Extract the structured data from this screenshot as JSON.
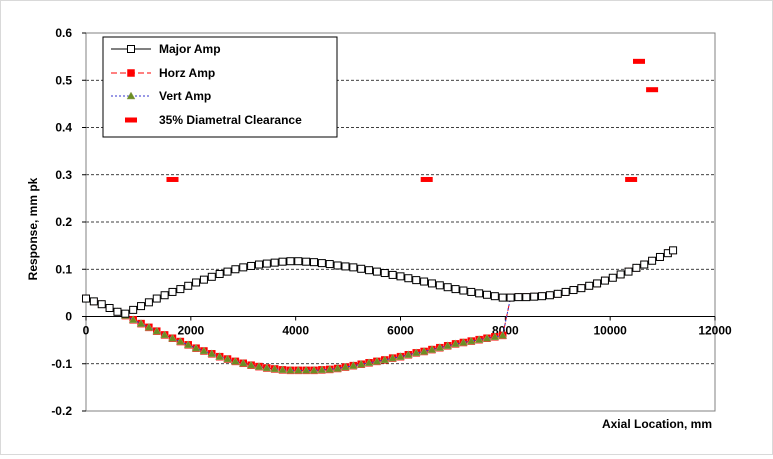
{
  "chart_data": {
    "type": "scatter",
    "title": "",
    "xlabel": "Axial Location, mm",
    "ylabel": "Response, mm pk",
    "xlim": [
      0,
      12000
    ],
    "ylim": [
      -0.2,
      0.6
    ],
    "x_ticks": [
      0,
      2000,
      4000,
      6000,
      8000,
      10000,
      12000
    ],
    "y_ticks": [
      -0.2,
      -0.1,
      0,
      0.1,
      0.2,
      0.3,
      0.4,
      0.5,
      0.6
    ],
    "x_tick_labels": [
      "0",
      "2000",
      "4000",
      "6000",
      "8000",
      "10000",
      "12000"
    ],
    "y_tick_labels": [
      "-0.2",
      "-0.1",
      "0",
      "0.1",
      "0.2",
      "0.3",
      "0.4",
      "0.5",
      "0.6"
    ],
    "grid": "horizontal-dashed",
    "legend_position": "top-left",
    "series": [
      {
        "name": "Major Amp",
        "style": "line-hollow-square",
        "color": "#000000",
        "x": [
          0,
          150,
          300,
          450,
          600,
          750,
          900,
          1050,
          1200,
          1350,
          1500,
          1650,
          1800,
          1950,
          2100,
          2250,
          2400,
          2550,
          2700,
          2850,
          3000,
          3150,
          3300,
          3450,
          3600,
          3750,
          3900,
          4050,
          4200,
          4350,
          4500,
          4650,
          4800,
          4950,
          5100,
          5250,
          5400,
          5550,
          5700,
          5850,
          6000,
          6150,
          6300,
          6450,
          6600,
          6750,
          6900,
          7050,
          7200,
          7350,
          7500,
          7650,
          7800,
          7950,
          8100,
          8250,
          8400,
          8550,
          8700,
          8850,
          9000,
          9150,
          9300,
          9450,
          9600,
          9750,
          9900,
          10050,
          10200,
          10350,
          10500,
          10650,
          10800,
          10950,
          11100,
          11200
        ],
        "y": [
          0.038,
          0.032,
          0.026,
          0.018,
          0.01,
          0.006,
          0.014,
          0.022,
          0.03,
          0.038,
          0.045,
          0.052,
          0.058,
          0.065,
          0.072,
          0.078,
          0.084,
          0.09,
          0.095,
          0.1,
          0.104,
          0.107,
          0.11,
          0.112,
          0.114,
          0.116,
          0.117,
          0.117,
          0.116,
          0.115,
          0.113,
          0.111,
          0.108,
          0.106,
          0.104,
          0.101,
          0.098,
          0.095,
          0.092,
          0.088,
          0.085,
          0.081,
          0.077,
          0.074,
          0.07,
          0.066,
          0.062,
          0.058,
          0.055,
          0.052,
          0.049,
          0.046,
          0.043,
          0.04,
          0.04,
          0.041,
          0.041,
          0.042,
          0.043,
          0.045,
          0.048,
          0.052,
          0.056,
          0.06,
          0.065,
          0.07,
          0.076,
          0.082,
          0.089,
          0.095,
          0.103,
          0.11,
          0.118,
          0.126,
          0.134,
          0.14
        ]
      },
      {
        "name": "Horz Amp",
        "style": "dash-filled-square",
        "color": "#ff0000",
        "x": [
          0,
          150,
          300,
          450,
          600,
          750,
          900,
          1050,
          1200,
          1350,
          1500,
          1650,
          1800,
          1950,
          2100,
          2250,
          2400,
          2550,
          2700,
          2850,
          3000,
          3150,
          3300,
          3450,
          3600,
          3750,
          3900,
          4050,
          4200,
          4350,
          4500,
          4650,
          4800,
          4950,
          5100,
          5250,
          5400,
          5550,
          5700,
          5850,
          6000,
          6150,
          6300,
          6450,
          6600,
          6750,
          6900,
          7050,
          7200,
          7350,
          7500,
          7650,
          7800,
          7950,
          8100,
          8250,
          8400,
          8550,
          8700,
          8850,
          9000,
          9150,
          9300,
          9450,
          9600,
          9750,
          9900,
          10050,
          10200,
          10350,
          10500,
          10650,
          10800,
          10950,
          11100,
          11200
        ],
        "y": [
          0.038,
          0.032,
          0.026,
          0.018,
          0.01,
          0.002,
          -0.007,
          -0.015,
          -0.023,
          -0.031,
          -0.039,
          -0.046,
          -0.053,
          -0.06,
          -0.067,
          -0.073,
          -0.079,
          -0.085,
          -0.09,
          -0.095,
          -0.099,
          -0.103,
          -0.106,
          -0.109,
          -0.111,
          -0.113,
          -0.114,
          -0.114,
          -0.114,
          -0.114,
          -0.113,
          -0.112,
          -0.11,
          -0.107,
          -0.104,
          -0.101,
          -0.098,
          -0.095,
          -0.092,
          -0.088,
          -0.085,
          -0.081,
          -0.077,
          -0.074,
          -0.07,
          -0.066,
          -0.062,
          -0.058,
          -0.055,
          -0.052,
          -0.049,
          -0.046,
          -0.043,
          -0.04,
          0.04,
          0.041,
          0.041,
          0.042,
          0.043,
          0.045,
          0.048,
          0.052,
          0.056,
          0.06,
          0.065,
          0.07,
          0.076,
          0.082,
          0.089,
          0.095,
          0.103,
          0.11,
          0.118,
          0.126,
          0.134,
          0.14
        ]
      },
      {
        "name": "Vert Amp",
        "style": "dot-triangle",
        "color": "#6b8e23",
        "line_color": "#3333cc",
        "x": [
          0,
          150,
          300,
          450,
          600,
          750,
          900,
          1050,
          1200,
          1350,
          1500,
          1650,
          1800,
          1950,
          2100,
          2250,
          2400,
          2550,
          2700,
          2850,
          3000,
          3150,
          3300,
          3450,
          3600,
          3750,
          3900,
          4050,
          4200,
          4350,
          4500,
          4650,
          4800,
          4950,
          5100,
          5250,
          5400,
          5550,
          5700,
          5850,
          6000,
          6150,
          6300,
          6450,
          6600,
          6750,
          6900,
          7050,
          7200,
          7350,
          7500,
          7650,
          7800,
          7950,
          8100,
          8250,
          8400,
          8550,
          8700,
          8850,
          9000,
          9150,
          9300,
          9450,
          9600,
          9750,
          9900,
          10050,
          10200,
          10350,
          10500,
          10650,
          10800,
          10950,
          11100,
          11200
        ],
        "y": [
          0.038,
          0.032,
          0.026,
          0.018,
          0.01,
          0.002,
          -0.007,
          -0.015,
          -0.023,
          -0.031,
          -0.039,
          -0.046,
          -0.053,
          -0.06,
          -0.067,
          -0.073,
          -0.079,
          -0.085,
          -0.09,
          -0.095,
          -0.099,
          -0.103,
          -0.106,
          -0.109,
          -0.111,
          -0.113,
          -0.114,
          -0.114,
          -0.114,
          -0.114,
          -0.113,
          -0.112,
          -0.11,
          -0.107,
          -0.104,
          -0.101,
          -0.098,
          -0.095,
          -0.092,
          -0.088,
          -0.085,
          -0.081,
          -0.077,
          -0.074,
          -0.07,
          -0.066,
          -0.062,
          -0.058,
          -0.055,
          -0.052,
          -0.049,
          -0.046,
          -0.043,
          -0.04,
          0.04,
          0.041,
          0.041,
          0.042,
          0.043,
          0.045,
          0.048,
          0.052,
          0.056,
          0.06,
          0.065,
          0.07,
          0.076,
          0.082,
          0.089,
          0.095,
          0.103,
          0.11,
          0.118,
          0.126,
          0.134,
          0.14
        ]
      },
      {
        "name": "35% Diametral Clearance",
        "style": "dash-marker",
        "color": "#ff0000",
        "x": [
          1650,
          6500,
          10400,
          10550,
          10800
        ],
        "y": [
          0.29,
          0.29,
          0.29,
          0.54,
          0.48
        ]
      }
    ]
  }
}
